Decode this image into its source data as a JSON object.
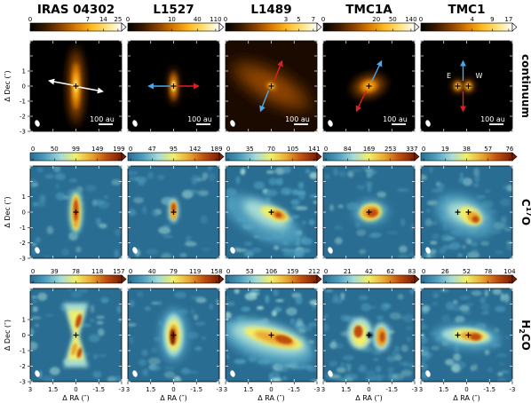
{
  "chart_data": {
    "type": "heatmap",
    "columns": [
      "IRAS 04302",
      "L1527",
      "L1489",
      "TMC1A",
      "TMC1"
    ],
    "rows": [
      {
        "label": "continuum",
        "label_html": [
          "continuum"
        ]
      },
      {
        "label": "C17O",
        "label_parts": [
          "C",
          "17",
          "O"
        ]
      },
      {
        "label": "H2CO",
        "label_parts": [
          "H",
          "2",
          "CO"
        ]
      }
    ],
    "colorbar_ticks": [
      [
        [
          "0",
          "7",
          "14",
          "25"
        ],
        [
          "0",
          "10",
          "40",
          "110"
        ],
        [
          "0",
          "3",
          "5",
          "7"
        ],
        [
          "0",
          "20",
          "50",
          "140"
        ],
        [
          "0",
          "4",
          "9",
          "17"
        ]
      ],
      [
        [
          "0",
          "50",
          "99",
          "149",
          "199"
        ],
        [
          "0",
          "47",
          "95",
          "142",
          "189"
        ],
        [
          "0",
          "35",
          "70",
          "105",
          "141"
        ],
        [
          "0",
          "84",
          "169",
          "253",
          "337"
        ],
        [
          "0",
          "19",
          "38",
          "57",
          "76"
        ]
      ],
      [
        [
          "0",
          "39",
          "78",
          "118",
          "157"
        ],
        [
          "0",
          "40",
          "79",
          "119",
          "158"
        ],
        [
          "0",
          "53",
          "106",
          "159",
          "212"
        ],
        [
          "0",
          "21",
          "42",
          "62",
          "83"
        ],
        [
          "0",
          "26",
          "52",
          "78",
          "104"
        ]
      ]
    ],
    "x_axis": {
      "label": "Δ RA (″)",
      "range": [
        3,
        -3
      ],
      "ticks": [
        "3",
        "1.5",
        "0",
        "-1.5",
        "-3"
      ]
    },
    "y_axis": {
      "label": "Δ Dec (″)",
      "range": [
        -3,
        3
      ],
      "ticks": [
        "1",
        "0",
        "-1",
        "-2",
        "-3"
      ]
    },
    "scale_bar": "100 au",
    "tmc1_labels": [
      "E",
      "W"
    ],
    "colormaps": {
      "continuum": [
        "#000000",
        "#3a1a00",
        "#8a4200",
        "#d97a00",
        "#ffb820",
        "#ffe27a",
        "#ffffff"
      ],
      "line": [
        "#2a6d92",
        "#4f9fbf",
        "#a5dcd6",
        "#f2ef6a",
        "#eaa830",
        "#bf4e10",
        "#7a1e02"
      ]
    },
    "arrow_colors": {
      "white": "#ffffff",
      "blue": "#4aa8e8",
      "red": "#e02020"
    }
  }
}
